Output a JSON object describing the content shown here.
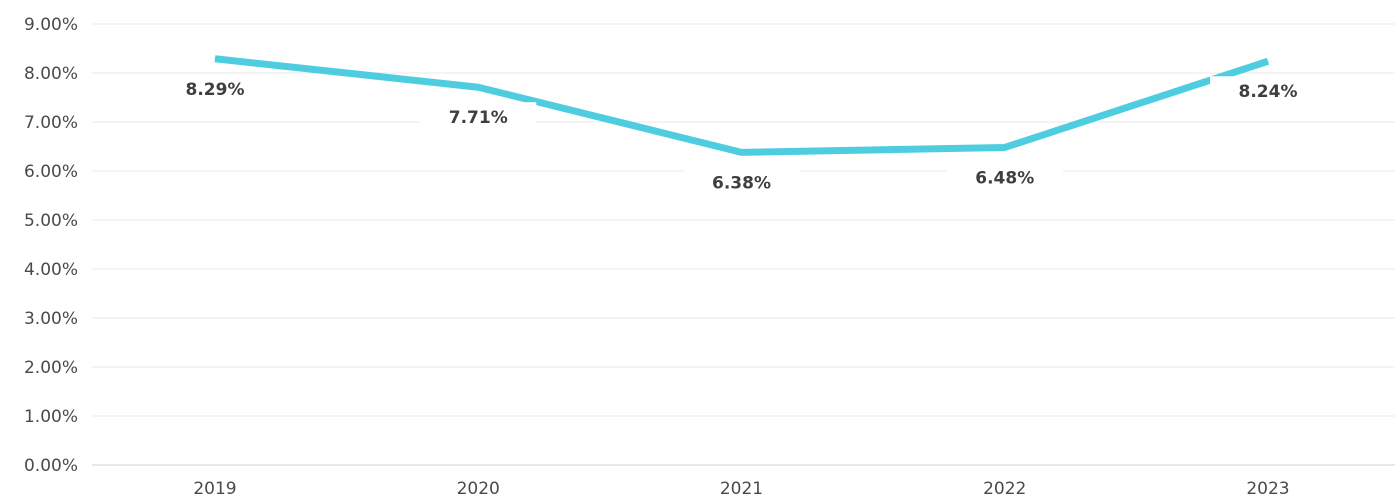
{
  "chart_data": {
    "type": "line",
    "categories": [
      "2019",
      "2020",
      "2021",
      "2022",
      "2023"
    ],
    "series": [
      {
        "values": [
          8.29,
          7.71,
          6.38,
          6.48,
          8.24
        ],
        "color": "#4ecde0"
      }
    ],
    "data_labels": [
      "8.29%",
      "7.71%",
      "6.38%",
      "6.48%",
      "8.24%"
    ],
    "y_ticks": [
      0,
      1,
      2,
      3,
      4,
      5,
      6,
      7,
      8,
      9
    ],
    "y_tick_labels": [
      "0.00%",
      "1.00%",
      "2.00%",
      "3.00%",
      "4.00%",
      "5.00%",
      "6.00%",
      "7.00%",
      "8.00%",
      "9.00%"
    ],
    "ylim": [
      0,
      9
    ],
    "title": "",
    "xlabel": "",
    "ylabel": "",
    "grid": true,
    "legend": "none"
  }
}
